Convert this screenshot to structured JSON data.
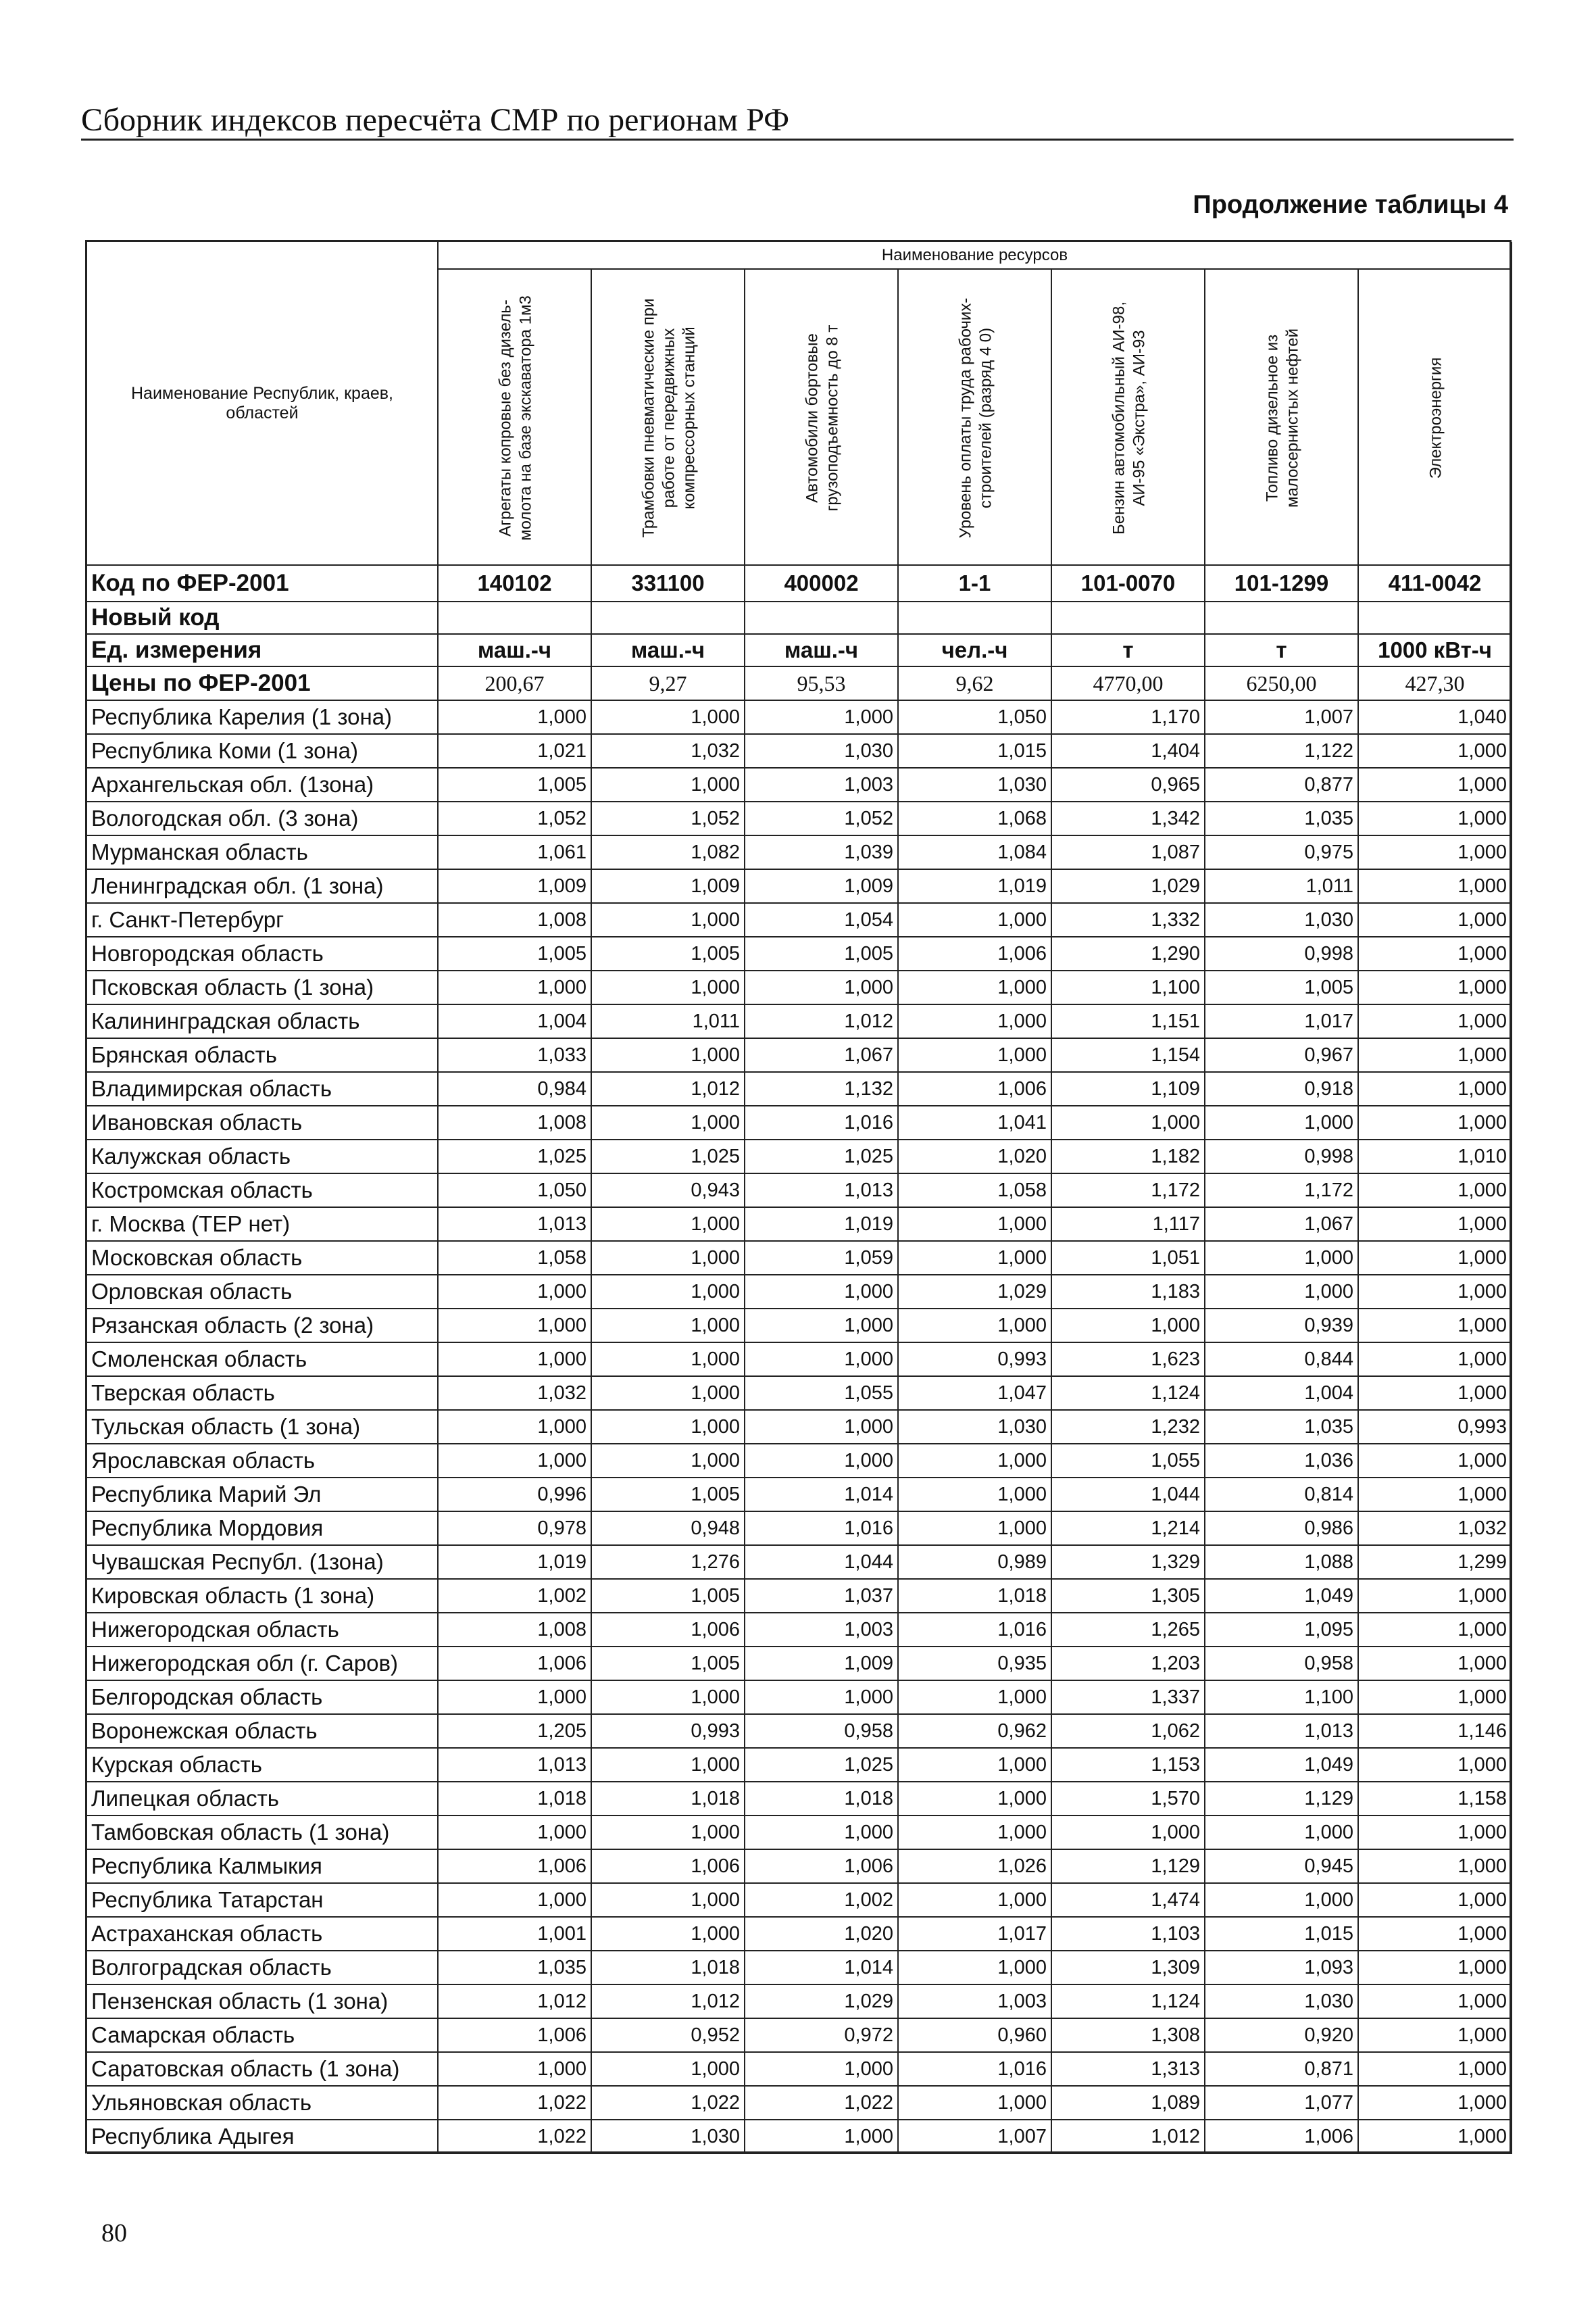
{
  "header": {
    "title": "Сборник индексов пересчёта СМР по регионам РФ"
  },
  "page_number": "80",
  "table": {
    "caption": "Продолжение таблицы 4",
    "header": {
      "region": "Наименование Республик, краев, областей",
      "resources": "Наименование ресурсов"
    },
    "columns": [
      "Агрегаты копровые без дизель-молота на базе экскаватора 1м3",
      "Трамбовки пневматические при работе от передвижных компрессорных станций",
      "Автомобили бортовые грузоподъемность до 8 т",
      "Уровень оплаты труда рабочих-строителей (разряд 4 0)",
      "Бензин автомобильный АИ-98, АИ-95 «Экстра», АИ-93",
      "Топливо дизельное из малосернистых нефтей",
      "Электроэнергия"
    ],
    "code_row": {
      "label": "Код по ФЕР-2001",
      "values": [
        "140102",
        "331100",
        "400002",
        "1-1",
        "101-0070",
        "101-1299",
        "411-0042"
      ]
    },
    "new_code_row": {
      "label": "Новый код"
    },
    "unit_row": {
      "label": "Ед. измерения",
      "values": [
        "маш.-ч",
        "маш.-ч",
        "маш.-ч",
        "чел.-ч",
        "т",
        "т",
        "1000 кВт-ч"
      ]
    },
    "price_row": {
      "label": "Цены по ФЕР-2001",
      "values": [
        "200,67",
        "9,27",
        "95,53",
        "9,62",
        "4770,00",
        "6250,00",
        "427,30"
      ]
    },
    "rows": [
      [
        "Республика Карелия (1 зона)",
        "1,000",
        "1,000",
        "1,000",
        "1,050",
        "1,170",
        "1,007",
        "1,040"
      ],
      [
        "Республика Коми (1 зона)",
        "1,021",
        "1,032",
        "1,030",
        "1,015",
        "1,404",
        "1,122",
        "1,000"
      ],
      [
        "Архангельская обл. (1зона)",
        "1,005",
        "1,000",
        "1,003",
        "1,030",
        "0,965",
        "0,877",
        "1,000"
      ],
      [
        "Вологодская обл. (3 зона)",
        "1,052",
        "1,052",
        "1,052",
        "1,068",
        "1,342",
        "1,035",
        "1,000"
      ],
      [
        "Мурманская область",
        "1,061",
        "1,082",
        "1,039",
        "1,084",
        "1,087",
        "0,975",
        "1,000"
      ],
      [
        "Ленинградская обл. (1 зона)",
        "1,009",
        "1,009",
        "1,009",
        "1,019",
        "1,029",
        "1,011",
        "1,000"
      ],
      [
        "г. Санкт-Петербург",
        "1,008",
        "1,000",
        "1,054",
        "1,000",
        "1,332",
        "1,030",
        "1,000"
      ],
      [
        "Новгородская область",
        "1,005",
        "1,005",
        "1,005",
        "1,006",
        "1,290",
        "0,998",
        "1,000"
      ],
      [
        "Псковская область (1 зона)",
        "1,000",
        "1,000",
        "1,000",
        "1,000",
        "1,100",
        "1,005",
        "1,000"
      ],
      [
        "Калининградская область",
        "1,004",
        "1,011",
        "1,012",
        "1,000",
        "1,151",
        "1,017",
        "1,000"
      ],
      [
        "Брянская область",
        "1,033",
        "1,000",
        "1,067",
        "1,000",
        "1,154",
        "0,967",
        "1,000"
      ],
      [
        "Владимирская область",
        "0,984",
        "1,012",
        "1,132",
        "1,006",
        "1,109",
        "0,918",
        "1,000"
      ],
      [
        "Ивановская область",
        "1,008",
        "1,000",
        "1,016",
        "1,041",
        "1,000",
        "1,000",
        "1,000"
      ],
      [
        "Калужская область",
        "1,025",
        "1,025",
        "1,025",
        "1,020",
        "1,182",
        "0,998",
        "1,010"
      ],
      [
        "Костромская область",
        "1,050",
        "0,943",
        "1,013",
        "1,058",
        "1,172",
        "1,172",
        "1,000"
      ],
      [
        "г. Москва (ТЕР нет)",
        "1,013",
        "1,000",
        "1,019",
        "1,000",
        "1,117",
        "1,067",
        "1,000"
      ],
      [
        "Московская  область",
        "1,058",
        "1,000",
        "1,059",
        "1,000",
        "1,051",
        "1,000",
        "1,000"
      ],
      [
        "Орловская область",
        "1,000",
        "1,000",
        "1,000",
        "1,029",
        "1,183",
        "1,000",
        "1,000"
      ],
      [
        "Рязанская область (2 зона)",
        "1,000",
        "1,000",
        "1,000",
        "1,000",
        "1,000",
        "0,939",
        "1,000"
      ],
      [
        "Смоленская область",
        "1,000",
        "1,000",
        "1,000",
        "0,993",
        "1,623",
        "0,844",
        "1,000"
      ],
      [
        "Тверская область",
        "1,032",
        "1,000",
        "1,055",
        "1,047",
        "1,124",
        "1,004",
        "1,000"
      ],
      [
        "Тульская область (1 зона)",
        "1,000",
        "1,000",
        "1,000",
        "1,030",
        "1,232",
        "1,035",
        "0,993"
      ],
      [
        "Ярославская область",
        "1,000",
        "1,000",
        "1,000",
        "1,000",
        "1,055",
        "1,036",
        "1,000"
      ],
      [
        "Республика Марий Эл",
        "0,996",
        "1,005",
        "1,014",
        "1,000",
        "1,044",
        "0,814",
        "1,000"
      ],
      [
        "Республика Мордовия",
        "0,978",
        "0,948",
        "1,016",
        "1,000",
        "1,214",
        "0,986",
        "1,032"
      ],
      [
        "Чувашская Республ. (1зона)",
        "1,019",
        "1,276",
        "1,044",
        "0,989",
        "1,329",
        "1,088",
        "1,299"
      ],
      [
        "Кировская область (1 зона)",
        "1,002",
        "1,005",
        "1,037",
        "1,018",
        "1,305",
        "1,049",
        "1,000"
      ],
      [
        "Нижегородская область",
        "1,008",
        "1,006",
        "1,003",
        "1,016",
        "1,265",
        "1,095",
        "1,000"
      ],
      [
        "Нижегородская обл (г. Саров)",
        "1,006",
        "1,005",
        "1,009",
        "0,935",
        "1,203",
        "0,958",
        "1,000"
      ],
      [
        "Белгородская область",
        "1,000",
        "1,000",
        "1,000",
        "1,000",
        "1,337",
        "1,100",
        "1,000"
      ],
      [
        "Воронежская область",
        "1,205",
        "0,993",
        "0,958",
        "0,962",
        "1,062",
        "1,013",
        "1,146"
      ],
      [
        "Курская область",
        "1,013",
        "1,000",
        "1,025",
        "1,000",
        "1,153",
        "1,049",
        "1,000"
      ],
      [
        "Липецкая область",
        "1,018",
        "1,018",
        "1,018",
        "1,000",
        "1,570",
        "1,129",
        "1,158"
      ],
      [
        "Тамбовская область (1 зона)",
        "1,000",
        "1,000",
        "1,000",
        "1,000",
        "1,000",
        "1,000",
        "1,000"
      ],
      [
        "Республика Калмыкия",
        "1,006",
        "1,006",
        "1,006",
        "1,026",
        "1,129",
        "0,945",
        "1,000"
      ],
      [
        "Республика Татарстан",
        "1,000",
        "1,000",
        "1,002",
        "1,000",
        "1,474",
        "1,000",
        "1,000"
      ],
      [
        "Астраханская область",
        "1,001",
        "1,000",
        "1,020",
        "1,017",
        "1,103",
        "1,015",
        "1,000"
      ],
      [
        "Волгоградская область",
        "1,035",
        "1,018",
        "1,014",
        "1,000",
        "1,309",
        "1,093",
        "1,000"
      ],
      [
        "Пензенская область (1 зона)",
        "1,012",
        "1,012",
        "1,029",
        "1,003",
        "1,124",
        "1,030",
        "1,000"
      ],
      [
        "Самарская область",
        "1,006",
        "0,952",
        "0,972",
        "0,960",
        "1,308",
        "0,920",
        "1,000"
      ],
      [
        "Саратовская область (1 зона)",
        "1,000",
        "1,000",
        "1,000",
        "1,016",
        "1,313",
        "0,871",
        "1,000"
      ],
      [
        "Ульяновская область",
        "1,022",
        "1,022",
        "1,022",
        "1,000",
        "1,089",
        "1,077",
        "1,000"
      ],
      [
        "Республика Адыгея",
        "1,022",
        "1,030",
        "1,000",
        "1,007",
        "1,012",
        "1,006",
        "1,000"
      ]
    ]
  }
}
